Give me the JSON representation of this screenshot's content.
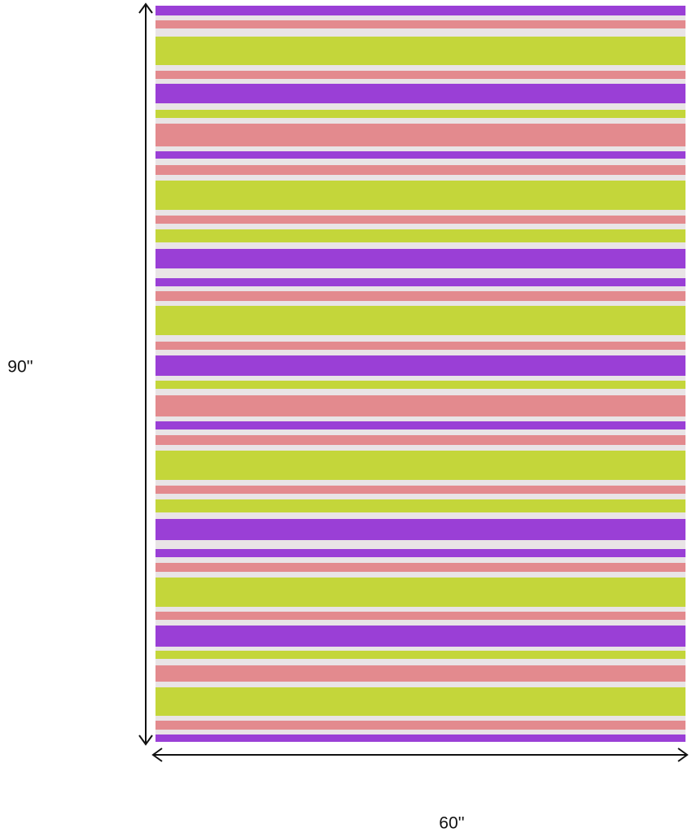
{
  "dimensions": {
    "height": "90''",
    "width": "60''"
  }
}
